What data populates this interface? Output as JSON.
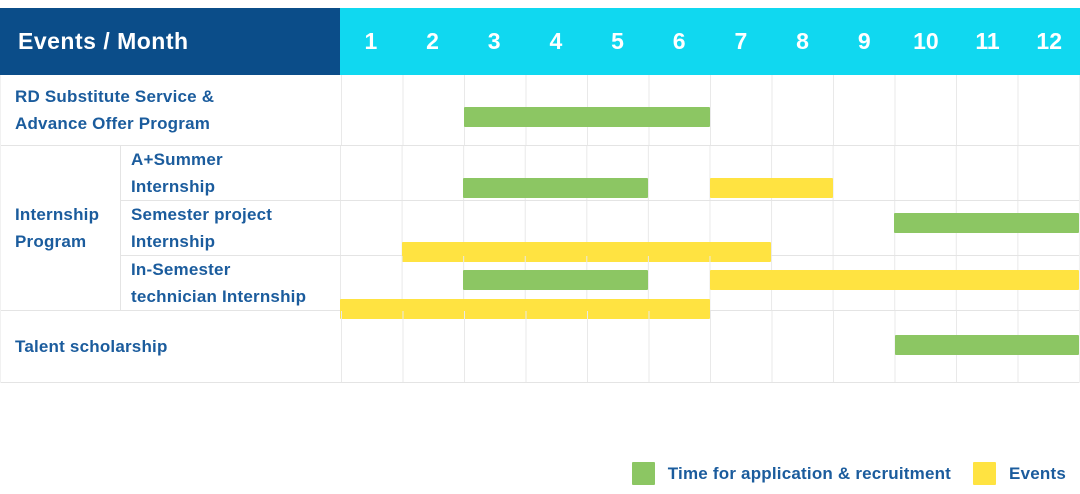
{
  "header": {
    "title": "Events / Month",
    "months": [
      "1",
      "2",
      "3",
      "4",
      "5",
      "6",
      "7",
      "8",
      "9",
      "10",
      "11",
      "12"
    ]
  },
  "group_label": {
    "line1": "Internship",
    "line2": "Program"
  },
  "rows_display": [
    {
      "line1": "RD Substitute Service &",
      "line2": "Advance Offer Program"
    },
    {
      "line1": "A+Summer",
      "line2": "Internship"
    },
    {
      "line1": "Semester project",
      "line2": "Internship"
    },
    {
      "line1": "In-Semester",
      "line2": "technician Internship"
    },
    {
      "line1": "Talent scholarship",
      "line2": ""
    }
  ],
  "legend": {
    "items": [
      {
        "color_key": "green",
        "label": "Time for application & recruitment"
      },
      {
        "color_key": "yellow",
        "label": "Events"
      }
    ]
  },
  "colors": {
    "header_navy": "#0B4D89",
    "header_cyan": "#10D8F0",
    "green": "#8CC663",
    "yellow": "#FFE341",
    "label_blue": "#1B5C9D",
    "grid_line": "#E9E9E9"
  },
  "chart_data": {
    "type": "bar",
    "subtype": "gantt",
    "title": "Events / Month",
    "x_axis": {
      "unit": "month",
      "ticks": [
        1,
        2,
        3,
        4,
        5,
        6,
        7,
        8,
        9,
        10,
        11,
        12
      ],
      "range": [
        1,
        12
      ]
    },
    "legend_position": "bottom-right",
    "series_legend": [
      {
        "name": "Time for application & recruitment",
        "color": "#8CC663"
      },
      {
        "name": "Events",
        "color": "#FFE341"
      }
    ],
    "rows": [
      {
        "group": null,
        "label": "RD Substitute Service & Advance Offer Program",
        "bars": [
          {
            "series": "Time for application & recruitment",
            "color": "green",
            "start_month": 3,
            "end_month": 6,
            "line": 1
          }
        ]
      },
      {
        "group": "Internship Program",
        "label": "A+Summer Internship",
        "bars": [
          {
            "series": "Time for application & recruitment",
            "color": "green",
            "start_month": 3,
            "end_month": 5,
            "line": 1
          },
          {
            "series": "Events",
            "color": "yellow",
            "start_month": 7,
            "end_month": 8,
            "line": 1
          }
        ]
      },
      {
        "group": "Internship Program",
        "label": "Semester project Internship",
        "bars": [
          {
            "series": "Time for application & recruitment",
            "color": "green",
            "start_month": 10,
            "end_month": 12,
            "line": 1
          },
          {
            "series": "Events",
            "color": "yellow",
            "start_month": 2,
            "end_month": 7,
            "line": 2
          }
        ]
      },
      {
        "group": "Internship Program",
        "label": "In-Semester technician Internship",
        "bars": [
          {
            "series": "Time for application & recruitment",
            "color": "green",
            "start_month": 3,
            "end_month": 5,
            "line": 1
          },
          {
            "series": "Events",
            "color": "yellow",
            "start_month": 7,
            "end_month": 12,
            "line": 1
          },
          {
            "series": "Events",
            "color": "yellow",
            "start_month": 1,
            "end_month": 6,
            "line": 2
          }
        ]
      },
      {
        "group": null,
        "label": "Talent scholarship",
        "bars": [
          {
            "series": "Time for application & recruitment",
            "color": "green",
            "start_month": 10,
            "end_month": 12,
            "line": 1
          }
        ]
      }
    ]
  }
}
